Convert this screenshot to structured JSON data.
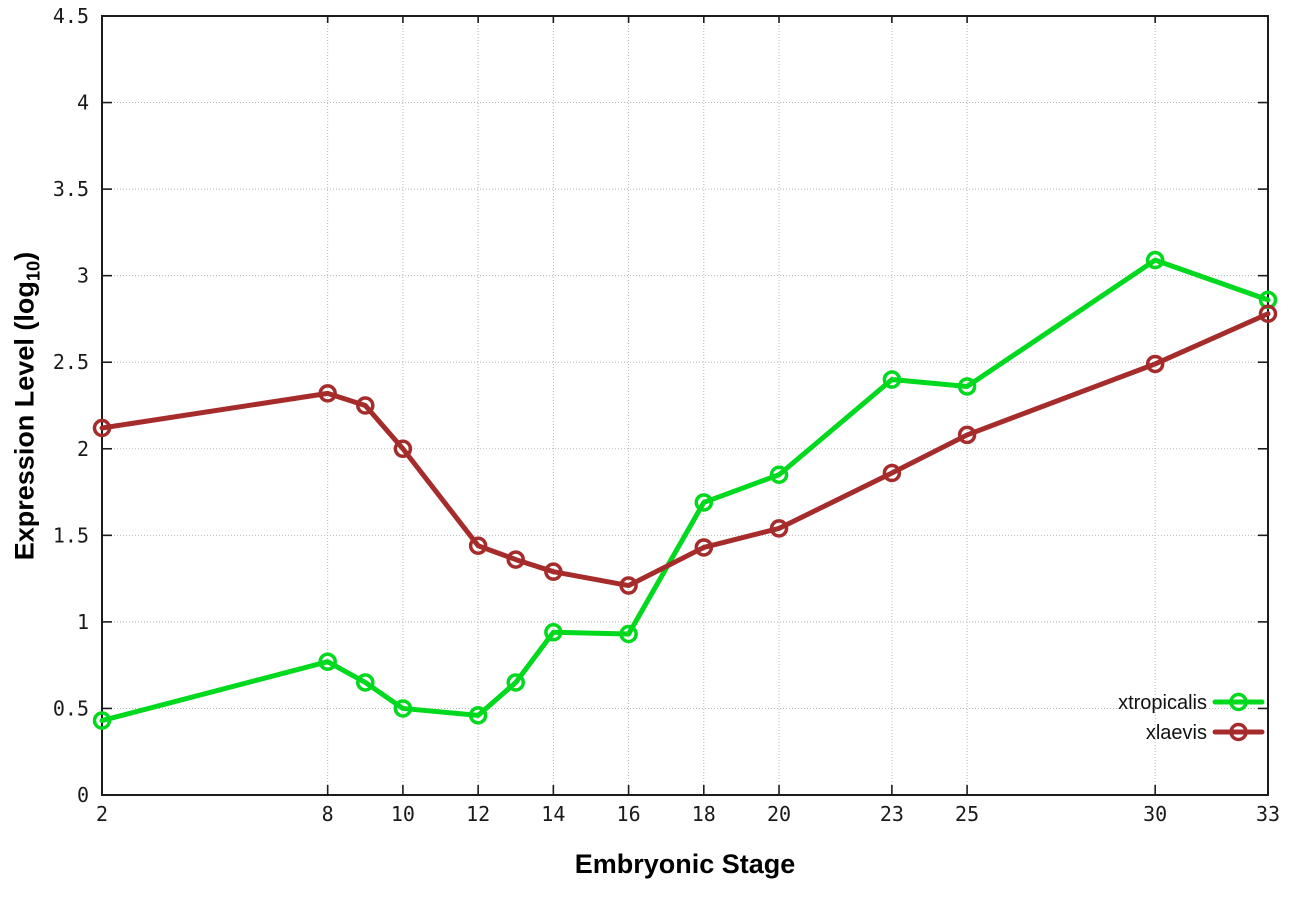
{
  "chart_data": {
    "type": "line",
    "title": "",
    "xlabel": "Embryonic Stage",
    "ylabel_prefix": "Expression Level (log",
    "ylabel_sub": "10",
    "ylabel_suffix": ")",
    "x": [
      2,
      8,
      9,
      10,
      12,
      13,
      14,
      16,
      18,
      20,
      23,
      25,
      30,
      33
    ],
    "x_ticks": [
      2,
      8,
      10,
      12,
      14,
      16,
      18,
      20,
      23,
      25,
      30,
      33
    ],
    "y_ticks": [
      0,
      0.5,
      1,
      1.5,
      2,
      2.5,
      3,
      3.5,
      4,
      4.5
    ],
    "xlim": [
      2,
      33
    ],
    "ylim": [
      0,
      4.5
    ],
    "grid": true,
    "grid_color": "#b8b8b8",
    "legend_position": "bottom-right",
    "marker": "open-circle",
    "series": [
      {
        "name": "xtropicalis",
        "color": "#00d91e",
        "values": [
          0.43,
          0.77,
          0.65,
          0.5,
          0.46,
          0.65,
          0.94,
          0.93,
          1.69,
          1.85,
          2.4,
          2.36,
          3.09,
          2.86
        ]
      },
      {
        "name": "xlaevis",
        "color": "#a62c2c",
        "values": [
          2.12,
          2.32,
          2.25,
          2.0,
          1.44,
          1.36,
          1.29,
          1.21,
          1.43,
          1.54,
          1.86,
          2.08,
          2.49,
          2.78
        ]
      }
    ]
  }
}
